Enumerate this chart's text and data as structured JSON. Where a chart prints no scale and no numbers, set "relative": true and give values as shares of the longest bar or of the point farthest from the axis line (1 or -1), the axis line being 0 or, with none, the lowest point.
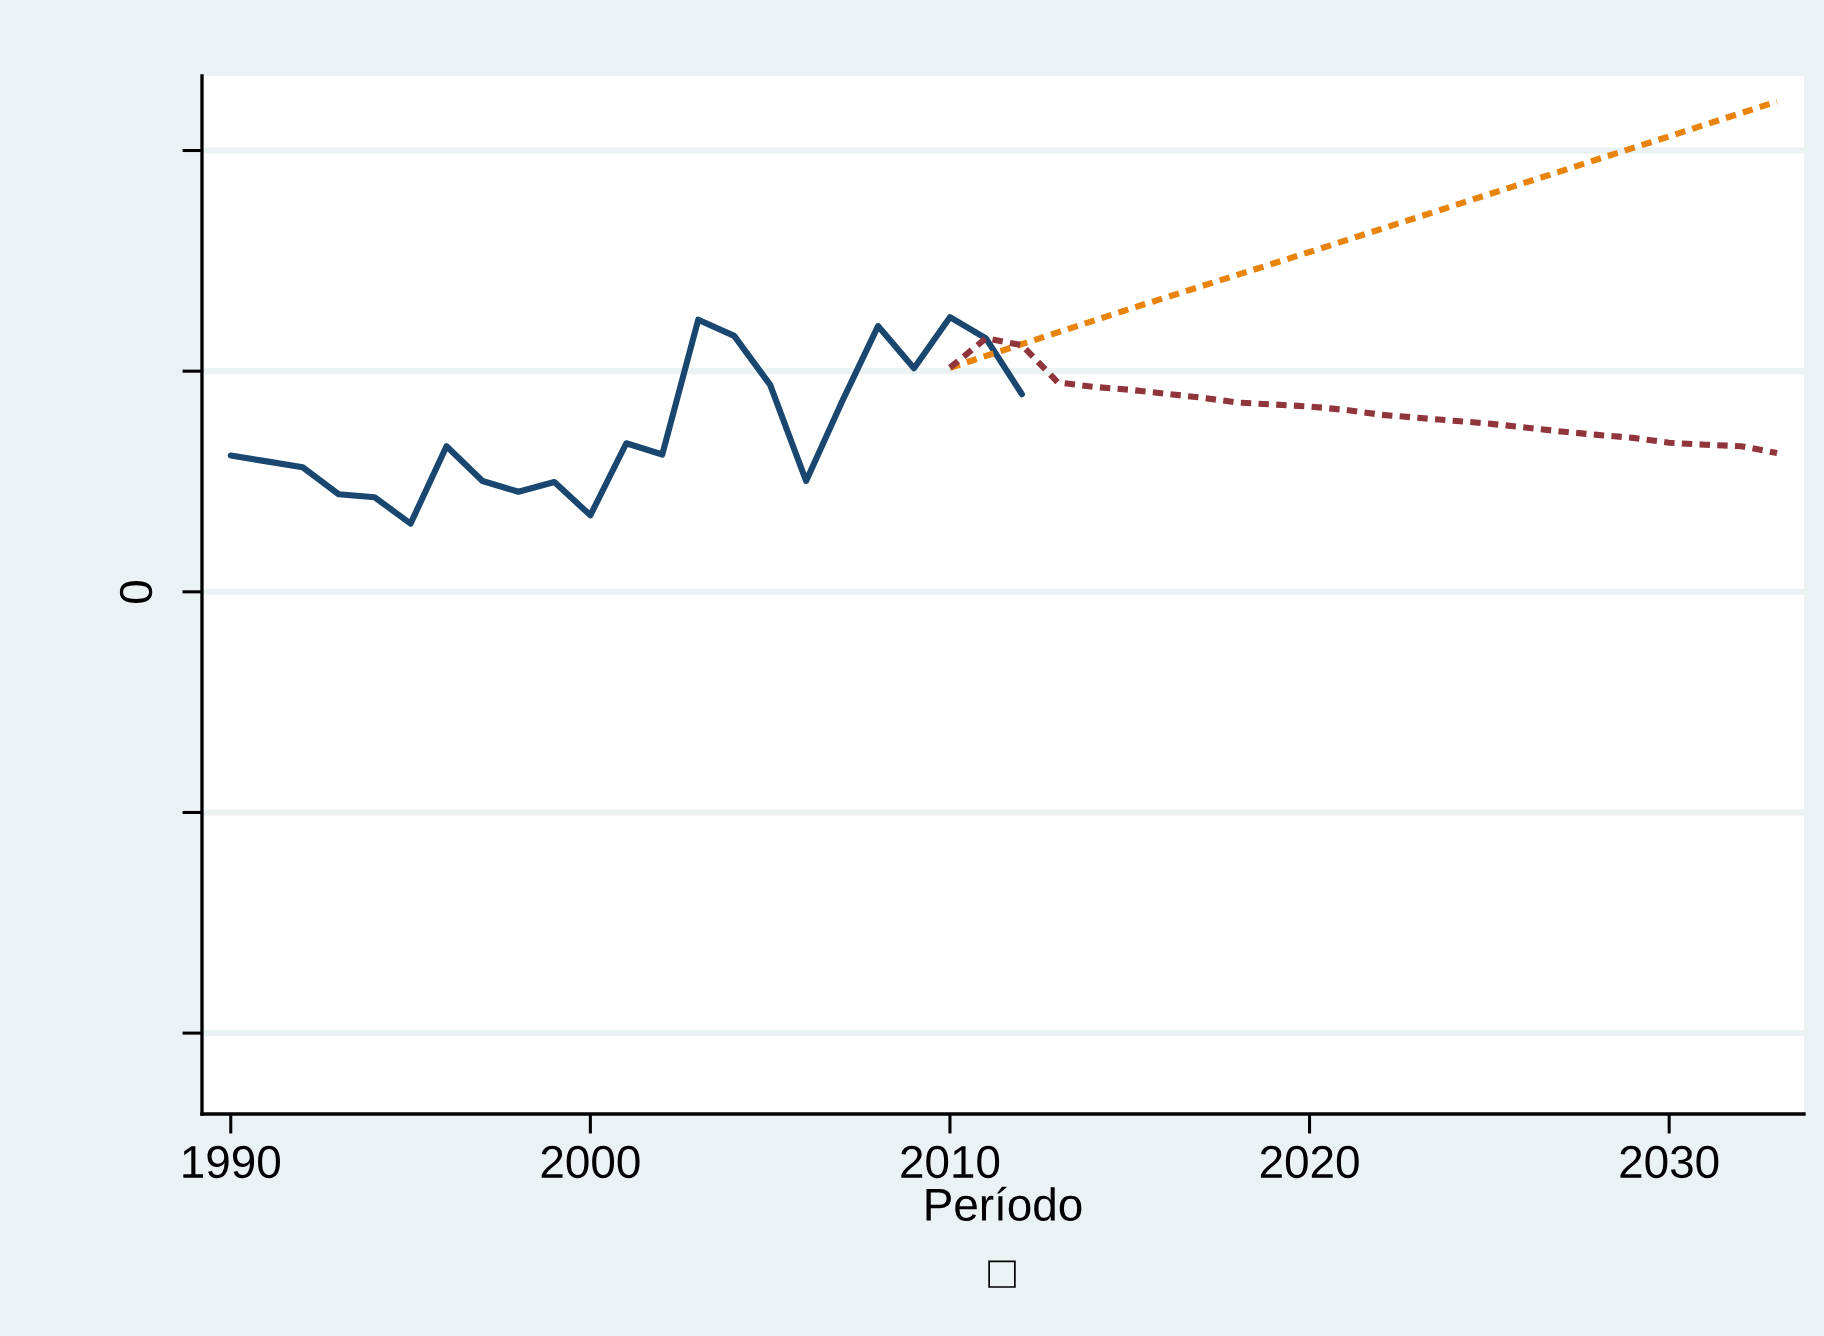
{
  "chart_data": {
    "type": "line",
    "relative": true,
    "xlabel": "Período",
    "annotations": [
      "0",
      "□"
    ],
    "xlim": [
      1989.2,
      2033.75
    ],
    "xticks": [
      1990,
      2000,
      2010,
      2020,
      2030
    ],
    "ref_lines": [
      {
        "axis": "y",
        "value": -0.9,
        "color": "#eaf2f3"
      },
      {
        "axis": "y",
        "value": -0.45,
        "color": "#eaf2f3"
      },
      {
        "axis": "y",
        "value": 0,
        "color": "#eaf2f3"
      },
      {
        "axis": "y",
        "value": 0.45,
        "color": "#eaf2f3"
      },
      {
        "axis": "y",
        "value": 0.9,
        "color": "#eaf2f3"
      }
    ],
    "marker": "none",
    "series": [
      {
        "color": "#1a476f",
        "line_style": "solid",
        "x": [
          1990,
          1991,
          1992,
          1993,
          1994,
          1995,
          1996,
          1997,
          1998,
          1999,
          2000,
          2001,
          2002,
          2003,
          2004,
          2005,
          2006,
          2007,
          2008,
          2009,
          2010,
          2011,
          2012
        ],
        "values": [
          0.278,
          0.266,
          0.254,
          0.199,
          0.193,
          0.139,
          0.297,
          0.226,
          0.204,
          0.224,
          0.156,
          0.303,
          0.28,
          0.555,
          0.522,
          0.422,
          0.226,
          0.388,
          0.542,
          0.456,
          0.56,
          0.517,
          0.403
        ]
      },
      {
        "color": "#e8830c",
        "line_style": "dashed",
        "x": [
          2010,
          2015,
          2020,
          2025,
          2030,
          2033
        ],
        "values": [
          0.457,
          0.577,
          0.693,
          0.811,
          0.929,
          1.0
        ]
      },
      {
        "color": "#90353b",
        "line_style": "dashed",
        "x": [
          2010,
          2011,
          2012,
          2013,
          2014,
          2015,
          2016,
          2017,
          2018,
          2019,
          2020,
          2021,
          2022,
          2023,
          2024,
          2025,
          2026,
          2027,
          2028,
          2029,
          2030,
          2031,
          2032,
          2033
        ],
        "values": [
          0.457,
          0.517,
          0.503,
          0.427,
          0.418,
          0.412,
          0.404,
          0.396,
          0.386,
          0.382,
          0.378,
          0.371,
          0.361,
          0.355,
          0.349,
          0.343,
          0.335,
          0.327,
          0.32,
          0.314,
          0.304,
          0.3,
          0.297,
          0.283
        ]
      }
    ]
  }
}
